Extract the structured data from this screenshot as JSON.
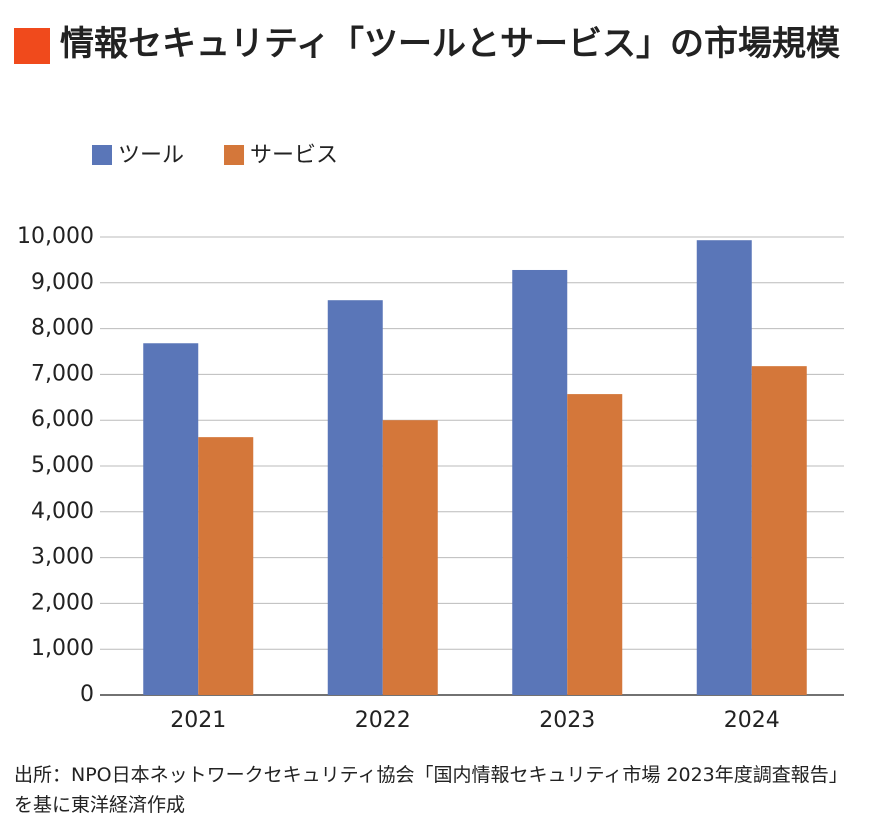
{
  "chart_data": {
    "type": "bar",
    "title": "情報セキュリティ「ツールとサービス」の市場規模",
    "source": "出所：NPO日本ネットワークセキュリティ協会「国内情報セキュリティ市場 2023年度調査報告」を基に東洋経済作成",
    "categories": [
      "2021",
      "2022",
      "2023",
      "2024"
    ],
    "series": [
      {
        "name": "ツール",
        "color": "#5a76b8",
        "values": [
          7680,
          8620,
          9280,
          9930
        ]
      },
      {
        "name": "サービス",
        "color": "#d4773a",
        "values": [
          5630,
          6000,
          6570,
          7180
        ]
      }
    ],
    "ylim": [
      0,
      10000
    ],
    "yticks": [
      0,
      {
        "value": 1000,
        "label": "1,000"
      },
      {
        "value": 2000,
        "label": "2,000"
      },
      {
        "value": 3000,
        "label": "3,000"
      },
      {
        "value": 4000,
        "label": "4,000"
      },
      {
        "value": 5000,
        "label": "5,000"
      },
      {
        "value": 6000,
        "label": "6,000"
      },
      {
        "value": 7000,
        "label": "7,000"
      },
      {
        "value": 8000,
        "label": "8,000"
      },
      {
        "value": 9000,
        "label": "9,000"
      },
      {
        "value": 10000,
        "label": "10,000"
      }
    ],
    "grid": true,
    "legend": "top"
  }
}
